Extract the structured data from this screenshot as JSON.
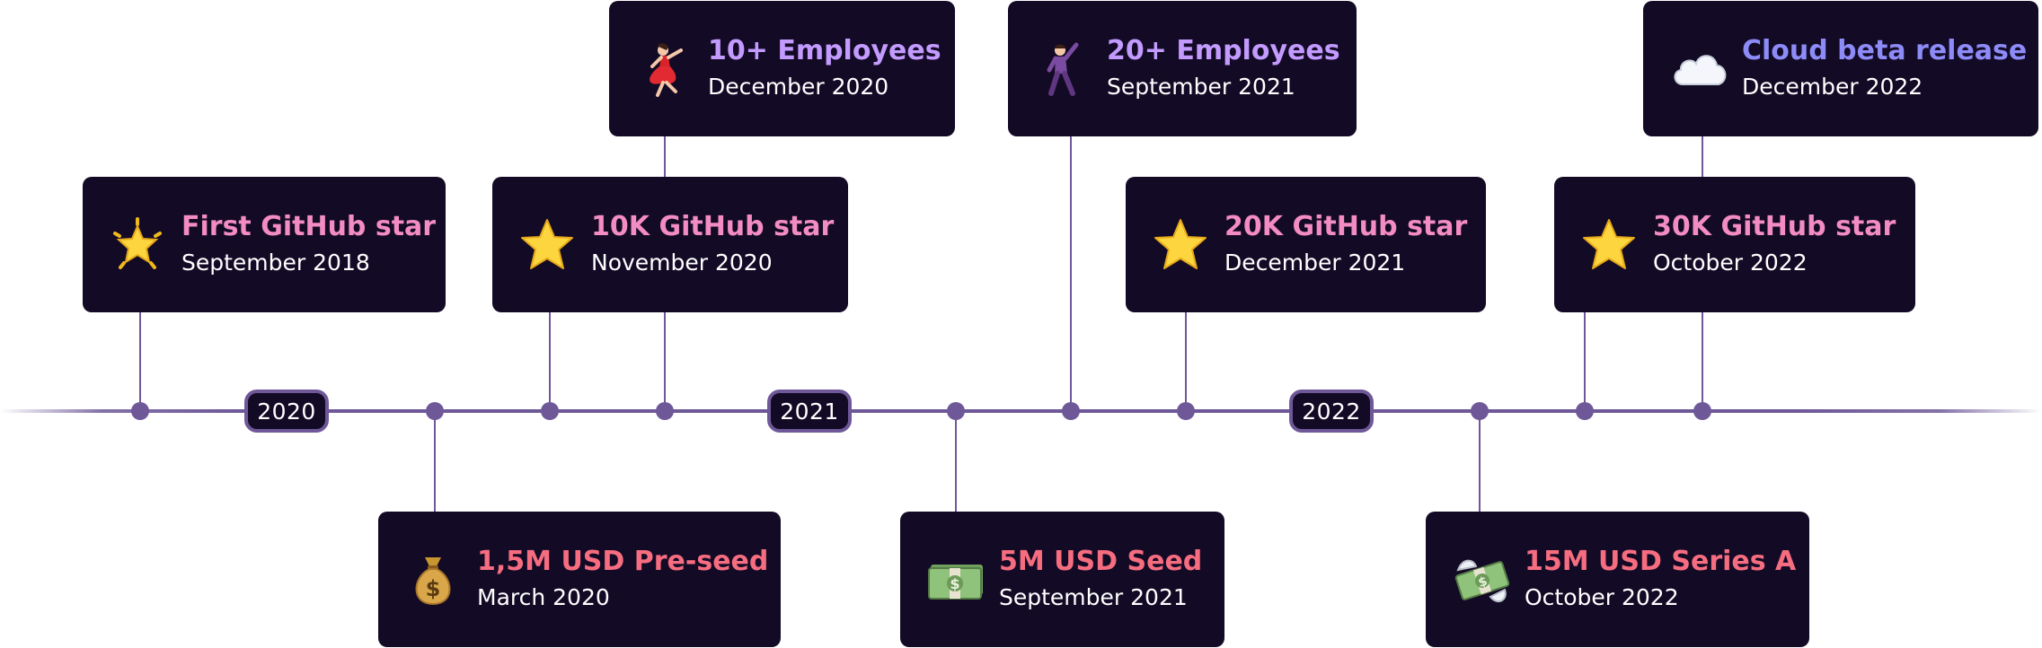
{
  "colors": {
    "background": "#ffffff",
    "card": "#130a26",
    "line": "#6e5898",
    "date_text": "#ffffff",
    "github_title": "#f28cc3",
    "funding_title": "#f66d80",
    "team_title": "#c39bff",
    "cloud_title": "#8d8bf7"
  },
  "years": [
    "2020",
    "2021",
    "2022"
  ],
  "milestones": [
    {
      "title": "First GitHub star",
      "date": "September 2018",
      "icon": "glowing-star-icon",
      "category": "github"
    },
    {
      "title": "1,5M USD Pre-seed",
      "date": "March 2020",
      "icon": "money-bag-icon",
      "category": "funding"
    },
    {
      "title": "10K GitHub star",
      "date": "November 2020",
      "icon": "star-icon",
      "category": "github"
    },
    {
      "title": "10+ Employees",
      "date": "December 2020",
      "icon": "dancer-icon",
      "category": "team"
    },
    {
      "title": "5M USD Seed",
      "date": "September 2021",
      "icon": "dollar-banknote-icon",
      "category": "funding"
    },
    {
      "title": "20+ Employees",
      "date": "September 2021",
      "icon": "dancing-man-icon",
      "category": "team"
    },
    {
      "title": "20K GitHub star",
      "date": "December 2021",
      "icon": "star-icon",
      "category": "github"
    },
    {
      "title": "15M USD Series A",
      "date": "October 2022",
      "icon": "money-with-wings-icon",
      "category": "funding"
    },
    {
      "title": "30K GitHub star",
      "date": "October 2022",
      "icon": "star-icon",
      "category": "github"
    },
    {
      "title": "Cloud beta release",
      "date": "December 2022",
      "icon": "cloud-icon",
      "category": "cloud"
    }
  ]
}
